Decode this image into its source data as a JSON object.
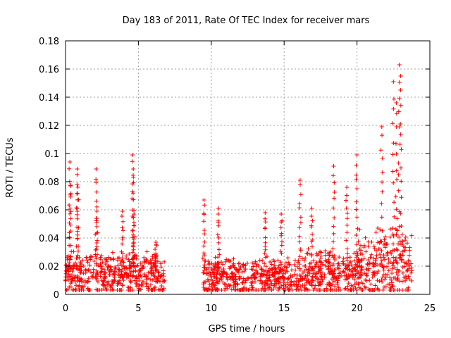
{
  "chart_data": {
    "type": "scatter",
    "title": "Day 183 of 2011, Rate Of TEC Index for receiver mars",
    "xlabel": "GPS time / hours",
    "ylabel": "ROTI / TECUs",
    "xlim": [
      0,
      25
    ],
    "ylim": [
      0,
      0.18
    ],
    "xticks": [
      0,
      5,
      10,
      15,
      20,
      25
    ],
    "yticks": [
      0,
      0.02,
      0.04,
      0.06,
      0.08,
      0.1,
      0.12,
      0.14,
      0.16,
      0.18
    ],
    "xtick_labels": [
      "0",
      "5",
      "10",
      "15",
      "20",
      "25"
    ],
    "ytick_labels": [
      "0",
      "0.02",
      "0.04",
      "0.06",
      "0.08",
      "0.1",
      "0.12",
      "0.14",
      "0.16",
      "0.18"
    ],
    "grid": true,
    "marker": "+",
    "color": "#ff0000",
    "series": [
      {
        "name": "ROTI",
        "baseline_segments": [
          {
            "x_start": 0.0,
            "x_end": 6.8,
            "base": 0.014,
            "spread": 0.018
          },
          {
            "x_start": 9.4,
            "x_end": 16.0,
            "base": 0.012,
            "spread": 0.016
          },
          {
            "x_start": 16.0,
            "x_end": 20.0,
            "base": 0.014,
            "spread": 0.02
          },
          {
            "x_start": 20.0,
            "x_end": 23.8,
            "base": 0.02,
            "spread": 0.03
          }
        ],
        "spikes": [
          {
            "x": 0.3,
            "y": 0.094
          },
          {
            "x": 0.35,
            "y": 0.077
          },
          {
            "x": 0.8,
            "y": 0.089
          },
          {
            "x": 0.85,
            "y": 0.076
          },
          {
            "x": 2.1,
            "y": 0.089
          },
          {
            "x": 2.15,
            "y": 0.059
          },
          {
            "x": 3.9,
            "y": 0.059
          },
          {
            "x": 4.6,
            "y": 0.099
          },
          {
            "x": 4.65,
            "y": 0.089
          },
          {
            "x": 4.7,
            "y": 0.057
          },
          {
            "x": 6.2,
            "y": 0.037
          },
          {
            "x": 9.5,
            "y": 0.067
          },
          {
            "x": 10.5,
            "y": 0.061
          },
          {
            "x": 13.7,
            "y": 0.058
          },
          {
            "x": 14.8,
            "y": 0.057
          },
          {
            "x": 16.1,
            "y": 0.081
          },
          {
            "x": 16.9,
            "y": 0.061
          },
          {
            "x": 18.4,
            "y": 0.091
          },
          {
            "x": 19.3,
            "y": 0.076
          },
          {
            "x": 20.0,
            "y": 0.099
          },
          {
            "x": 21.7,
            "y": 0.119
          },
          {
            "x": 22.5,
            "y": 0.151
          },
          {
            "x": 22.7,
            "y": 0.136
          },
          {
            "x": 22.9,
            "y": 0.163
          },
          {
            "x": 23.0,
            "y": 0.155
          }
        ]
      }
    ]
  }
}
